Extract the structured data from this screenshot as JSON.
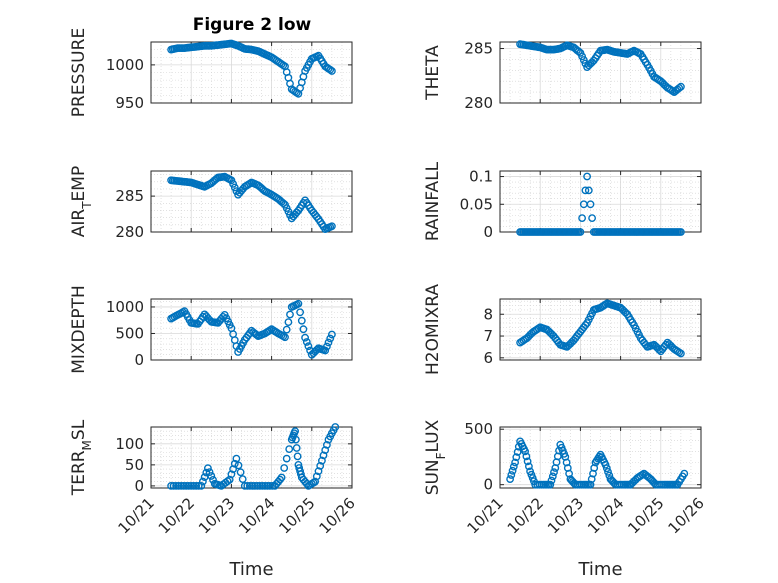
{
  "figure": {
    "title": "Figure 2 low"
  },
  "chart_data": [
    {
      "type": "scatter",
      "title": "Figure 2 low",
      "ylabel": "PRESSURE",
      "xlabel": "",
      "xlim": [
        "2010-10-21",
        "2010-10-26"
      ],
      "ylim": [
        950,
        1030
      ],
      "yticks": [
        950,
        1000
      ],
      "ytick_labels": [
        "950",
        "1000"
      ],
      "xtick_labels": [],
      "grid": true,
      "x": [
        "2010-10-21T12:00",
        "2010-10-21T16:00",
        "2010-10-21T20:00",
        "2010-10-22T00:00",
        "2010-10-22T04:00",
        "2010-10-22T08:00",
        "2010-10-22T12:00",
        "2010-10-22T16:00",
        "2010-10-22T20:00",
        "2010-10-23T00:00",
        "2010-10-23T04:00",
        "2010-10-23T08:00",
        "2010-10-23T12:00",
        "2010-10-23T16:00",
        "2010-10-23T20:00",
        "2010-10-24T00:00",
        "2010-10-24T04:00",
        "2010-10-24T08:00",
        "2010-10-24T12:00",
        "2010-10-24T16:00",
        "2010-10-24T20:00",
        "2010-10-25T00:00",
        "2010-10-25T04:00",
        "2010-10-25T08:00",
        "2010-10-25T12:00"
      ],
      "values": [
        1020,
        1022,
        1022,
        1023,
        1024,
        1025,
        1025,
        1026,
        1027,
        1028,
        1025,
        1021,
        1020,
        1018,
        1014,
        1010,
        1004,
        998,
        968,
        962,
        992,
        1008,
        1012,
        998,
        992
      ]
    },
    {
      "type": "scatter",
      "ylabel": "THETA",
      "xlabel": "",
      "xlim": [
        "2010-10-21",
        "2010-10-26"
      ],
      "ylim": [
        280,
        285.6
      ],
      "yticks": [
        280,
        285
      ],
      "ytick_labels": [
        "280",
        "285"
      ],
      "xtick_labels": [],
      "grid": true,
      "x": [
        "2010-10-21T12:00",
        "2010-10-21T16:00",
        "2010-10-21T20:00",
        "2010-10-22T00:00",
        "2010-10-22T04:00",
        "2010-10-22T08:00",
        "2010-10-22T12:00",
        "2010-10-22T16:00",
        "2010-10-22T20:00",
        "2010-10-23T00:00",
        "2010-10-23T04:00",
        "2010-10-23T08:00",
        "2010-10-23T12:00",
        "2010-10-23T16:00",
        "2010-10-23T20:00",
        "2010-10-24T00:00",
        "2010-10-24T04:00",
        "2010-10-24T08:00",
        "2010-10-24T12:00",
        "2010-10-24T16:00",
        "2010-10-24T20:00",
        "2010-10-25T00:00",
        "2010-10-25T04:00",
        "2010-10-25T08:00",
        "2010-10-25T12:00"
      ],
      "values": [
        285.4,
        285.3,
        285.2,
        285.1,
        284.9,
        284.9,
        285.0,
        285.3,
        285.1,
        284.6,
        283.3,
        283.9,
        284.8,
        284.9,
        284.7,
        284.6,
        284.5,
        284.8,
        284.5,
        283.5,
        282.4,
        282.0,
        281.4,
        281.0,
        281.5
      ]
    },
    {
      "type": "scatter",
      "ylabel": "AIR_TEMP",
      "xlabel": "",
      "xlim": [
        "2010-10-21",
        "2010-10-26"
      ],
      "ylim": [
        280,
        288.5
      ],
      "yticks": [
        280,
        285
      ],
      "ytick_labels": [
        "280",
        "285"
      ],
      "xtick_labels": [],
      "grid": true,
      "x": [
        "2010-10-21T12:00",
        "2010-10-21T16:00",
        "2010-10-21T20:00",
        "2010-10-22T00:00",
        "2010-10-22T04:00",
        "2010-10-22T08:00",
        "2010-10-22T12:00",
        "2010-10-22T16:00",
        "2010-10-22T20:00",
        "2010-10-23T00:00",
        "2010-10-23T04:00",
        "2010-10-23T08:00",
        "2010-10-23T12:00",
        "2010-10-23T16:00",
        "2010-10-23T20:00",
        "2010-10-24T00:00",
        "2010-10-24T04:00",
        "2010-10-24T08:00",
        "2010-10-24T12:00",
        "2010-10-24T16:00",
        "2010-10-24T20:00",
        "2010-10-25T00:00",
        "2010-10-25T04:00",
        "2010-10-25T08:00",
        "2010-10-25T12:00"
      ],
      "values": [
        287.2,
        287.1,
        287.0,
        286.9,
        286.6,
        286.3,
        286.8,
        287.6,
        287.7,
        287.2,
        285.2,
        286.3,
        286.9,
        286.5,
        285.7,
        285.2,
        284.6,
        283.8,
        281.9,
        283.0,
        284.4,
        283.0,
        281.8,
        280.4,
        280.8
      ]
    },
    {
      "type": "scatter",
      "ylabel": "RAINFALL",
      "xlabel": "",
      "xlim": [
        "2010-10-21",
        "2010-10-26"
      ],
      "ylim": [
        0,
        0.11
      ],
      "yticks": [
        0,
        0.05,
        0.1
      ],
      "ytick_labels": [
        "0",
        "0.05",
        "0.1"
      ],
      "xtick_labels": [],
      "grid": true,
      "x": [
        "2010-10-21T12:00",
        "2010-10-21T16:00",
        "2010-10-21T20:00",
        "2010-10-22T00:00",
        "2010-10-22T04:00",
        "2010-10-22T08:00",
        "2010-10-22T12:00",
        "2010-10-22T16:00",
        "2010-10-22T20:00",
        "2010-10-23T00:00",
        "2010-10-23T04:00",
        "2010-10-23T08:00",
        "2010-10-23T12:00",
        "2010-10-23T16:00",
        "2010-10-23T20:00",
        "2010-10-24T00:00",
        "2010-10-24T04:00",
        "2010-10-24T08:00",
        "2010-10-24T12:00",
        "2010-10-24T16:00",
        "2010-10-24T20:00",
        "2010-10-25T00:00",
        "2010-10-25T04:00",
        "2010-10-25T08:00",
        "2010-10-25T12:00"
      ],
      "values": [
        0,
        0,
        0,
        0,
        0,
        0,
        0,
        0,
        0,
        0,
        0.1,
        0,
        0,
        0,
        0,
        0,
        0,
        0,
        0,
        0,
        0,
        0,
        0,
        0,
        0
      ]
    },
    {
      "type": "scatter",
      "ylabel": "MIXDEPTH",
      "xlabel": "",
      "xlim": [
        "2010-10-21",
        "2010-10-26"
      ],
      "ylim": [
        0,
        1150
      ],
      "yticks": [
        0,
        500,
        1000
      ],
      "ytick_labels": [
        "0",
        "500",
        "1000"
      ],
      "xtick_labels": [],
      "grid": true,
      "x": [
        "2010-10-21T12:00",
        "2010-10-21T16:00",
        "2010-10-21T20:00",
        "2010-10-22T00:00",
        "2010-10-22T04:00",
        "2010-10-22T08:00",
        "2010-10-22T12:00",
        "2010-10-22T16:00",
        "2010-10-22T20:00",
        "2010-10-23T00:00",
        "2010-10-23T04:00",
        "2010-10-23T08:00",
        "2010-10-23T12:00",
        "2010-10-23T16:00",
        "2010-10-23T20:00",
        "2010-10-24T00:00",
        "2010-10-24T04:00",
        "2010-10-24T08:00",
        "2010-10-24T12:00",
        "2010-10-24T16:00",
        "2010-10-24T20:00",
        "2010-10-25T00:00",
        "2010-10-25T04:00",
        "2010-10-25T08:00",
        "2010-10-25T12:00"
      ],
      "values": [
        780,
        850,
        920,
        700,
        680,
        860,
        720,
        700,
        850,
        600,
        150,
        380,
        550,
        450,
        500,
        580,
        500,
        430,
        1000,
        1060,
        420,
        100,
        220,
        180,
        480
      ]
    },
    {
      "type": "scatter",
      "ylabel": "H2OMIXRA",
      "xlabel": "",
      "xlim": [
        "2010-10-21",
        "2010-10-26"
      ],
      "ylim": [
        5.9,
        8.7
      ],
      "yticks": [
        6,
        7,
        8
      ],
      "ytick_labels": [
        "6",
        "7",
        "8"
      ],
      "xtick_labels": [],
      "grid": true,
      "x": [
        "2010-10-21T12:00",
        "2010-10-21T16:00",
        "2010-10-21T20:00",
        "2010-10-22T00:00",
        "2010-10-22T04:00",
        "2010-10-22T08:00",
        "2010-10-22T12:00",
        "2010-10-22T16:00",
        "2010-10-22T20:00",
        "2010-10-23T00:00",
        "2010-10-23T04:00",
        "2010-10-23T08:00",
        "2010-10-23T12:00",
        "2010-10-23T16:00",
        "2010-10-23T20:00",
        "2010-10-24T00:00",
        "2010-10-24T04:00",
        "2010-10-24T08:00",
        "2010-10-24T12:00",
        "2010-10-24T16:00",
        "2010-10-24T20:00",
        "2010-10-25T00:00",
        "2010-10-25T04:00",
        "2010-10-25T08:00",
        "2010-10-25T12:00"
      ],
      "values": [
        6.7,
        6.9,
        7.2,
        7.4,
        7.3,
        7.0,
        6.6,
        6.5,
        6.8,
        7.2,
        7.6,
        8.2,
        8.3,
        8.5,
        8.4,
        8.3,
        8.0,
        7.5,
        6.9,
        6.5,
        6.6,
        6.3,
        6.7,
        6.4,
        6.2
      ]
    },
    {
      "type": "scatter",
      "ylabel": "TERR_MSL",
      "xlabel": "Time",
      "xlim": [
        "2010-10-21",
        "2010-10-26"
      ],
      "ylim": [
        -5,
        140
      ],
      "yticks": [
        0,
        50,
        100
      ],
      "ytick_labels": [
        "0",
        "50",
        "100"
      ],
      "xticks": [
        "2010-10-21",
        "2010-10-22",
        "2010-10-23",
        "2010-10-24",
        "2010-10-25",
        "2010-10-26"
      ],
      "xtick_labels": [
        "10/21",
        "10/22",
        "10/23",
        "10/24",
        "10/25",
        "10/26"
      ],
      "grid": true,
      "x": [
        "2010-10-21T12:00",
        "2010-10-21T18:00",
        "2010-10-22T00:00",
        "2010-10-22T06:00",
        "2010-10-22T10:00",
        "2010-10-22T14:00",
        "2010-10-22T18:00",
        "2010-10-22T23:00",
        "2010-10-23T03:00",
        "2010-10-23T08:00",
        "2010-10-23T14:00",
        "2010-10-23T20:00",
        "2010-10-24T02:00",
        "2010-10-24T06:00",
        "2010-10-24T12:00",
        "2010-10-24T14:00",
        "2010-10-24T16:00",
        "2010-10-24T18:00",
        "2010-10-24T22:00",
        "2010-10-25T02:00",
        "2010-10-25T06:00",
        "2010-10-25T10:00",
        "2010-10-25T14:00"
      ],
      "values": [
        0,
        0,
        0,
        0,
        42,
        5,
        0,
        15,
        65,
        0,
        0,
        0,
        0,
        20,
        110,
        130,
        50,
        20,
        0,
        10,
        60,
        110,
        140
      ]
    },
    {
      "type": "scatter",
      "ylabel": "SUN_FLUX",
      "xlabel": "Time",
      "xlim": [
        "2010-10-21",
        "2010-10-26"
      ],
      "ylim": [
        -30,
        520
      ],
      "yticks": [
        0,
        500
      ],
      "ytick_labels": [
        "0",
        "500"
      ],
      "xticks": [
        "2010-10-21",
        "2010-10-22",
        "2010-10-23",
        "2010-10-24",
        "2010-10-25",
        "2010-10-26"
      ],
      "xtick_labels": [
        "10/21",
        "10/22",
        "10/23",
        "10/24",
        "10/25",
        "10/26"
      ],
      "grid": true,
      "x": [
        "2010-10-21T06:00",
        "2010-10-21T09:00",
        "2010-10-21T12:00",
        "2010-10-21T15:00",
        "2010-10-21T18:00",
        "2010-10-21T21:00",
        "2010-10-22T02:00",
        "2010-10-22T06:00",
        "2010-10-22T09:00",
        "2010-10-22T12:00",
        "2010-10-22T15:00",
        "2010-10-22T18:00",
        "2010-10-22T21:00",
        "2010-10-23T02:00",
        "2010-10-23T06:00",
        "2010-10-23T09:00",
        "2010-10-23T12:00",
        "2010-10-23T15:00",
        "2010-10-23T18:00",
        "2010-10-23T21:00",
        "2010-10-24T02:00",
        "2010-10-24T06:00",
        "2010-10-24T10:00",
        "2010-10-24T14:00",
        "2010-10-24T18:00",
        "2010-10-24T21:00",
        "2010-10-25T02:00",
        "2010-10-25T06:00",
        "2010-10-25T10:00",
        "2010-10-25T14:00"
      ],
      "values": [
        50,
        200,
        390,
        300,
        120,
        0,
        0,
        0,
        150,
        360,
        250,
        50,
        0,
        0,
        0,
        200,
        270,
        180,
        50,
        0,
        0,
        0,
        60,
        100,
        50,
        0,
        0,
        0,
        0,
        100
      ]
    }
  ]
}
